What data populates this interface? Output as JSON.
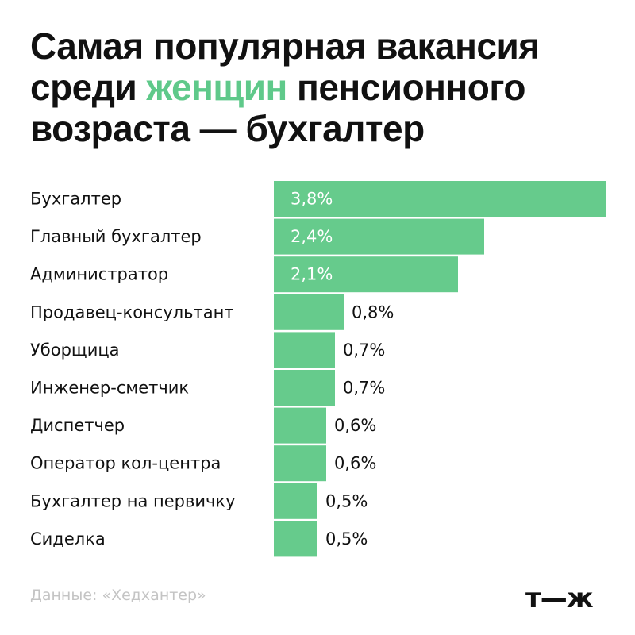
{
  "title": {
    "before": "Самая популярная вакансия среди ",
    "highlight": "женщин",
    "after": " пенсионного возраста — бухгалтер"
  },
  "colors": {
    "bar": "#66cb8c",
    "highlight": "#5fc98a",
    "text": "#111111",
    "source": "#c4c4c4"
  },
  "chart_data": {
    "type": "bar",
    "orientation": "horizontal",
    "categories": [
      "Бухгалтер",
      "Главный бухгалтер",
      "Администратор",
      "Продавец-консультант",
      "Уборщица",
      "Инженер-сметчик",
      "Диспетчер",
      "Оператор кол-центра",
      "Бухгалтер на первичку",
      "Сиделка"
    ],
    "values": [
      3.8,
      2.4,
      2.1,
      0.8,
      0.7,
      0.7,
      0.6,
      0.6,
      0.5,
      0.5
    ],
    "value_labels": [
      "3,8%",
      "2,4%",
      "2,1%",
      "0,8%",
      "0,7%",
      "0,7%",
      "0,6%",
      "0,6%",
      "0,5%",
      "0,5%"
    ],
    "xlim": [
      0,
      3.8
    ],
    "grid": false,
    "legend": false
  },
  "source": "Данные: «Хедхантер»",
  "logo": "т—ж"
}
